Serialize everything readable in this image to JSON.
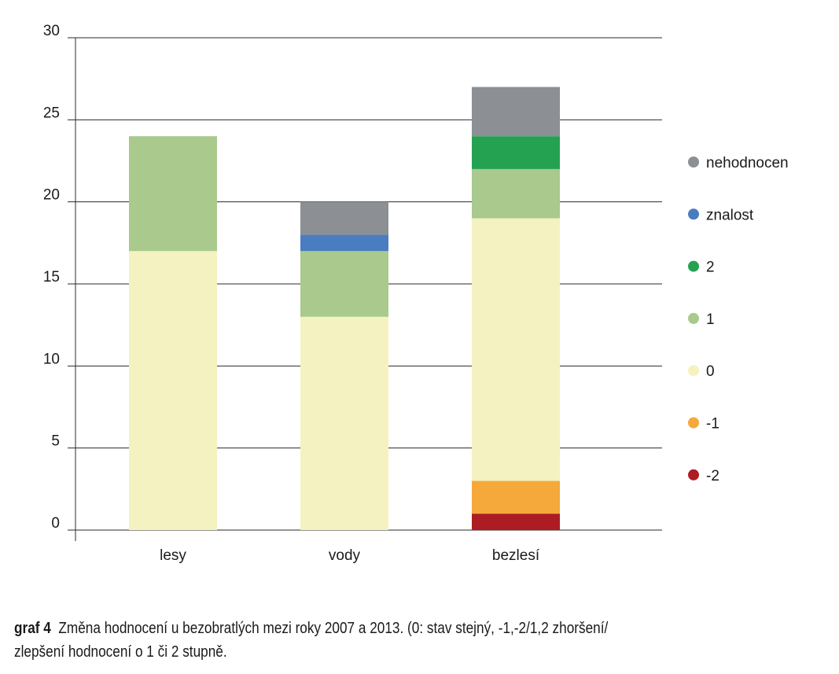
{
  "chart_data": {
    "type": "bar",
    "stacked": true,
    "categories": [
      "lesy",
      "vody",
      "bezlesí"
    ],
    "series": [
      {
        "name": "-2",
        "color": "#ad1c23",
        "values": [
          0,
          0,
          1
        ]
      },
      {
        "name": "-1",
        "color": "#f5a93a",
        "values": [
          0,
          0,
          2
        ]
      },
      {
        "name": "0",
        "color": "#f4f2c1",
        "values": [
          17,
          13,
          16
        ]
      },
      {
        "name": "1",
        "color": "#a9c98d",
        "values": [
          7,
          4,
          3
        ]
      },
      {
        "name": "2",
        "color": "#25a152",
        "values": [
          0,
          0,
          2
        ]
      },
      {
        "name": "znalost",
        "color": "#4a7cc0",
        "values": [
          0,
          1,
          0
        ]
      },
      {
        "name": "nehodnocen",
        "color": "#8c8f93",
        "values": [
          0,
          2,
          3
        ]
      }
    ],
    "ylim": [
      0,
      30
    ],
    "yticks": [
      0,
      5,
      10,
      15,
      20,
      25,
      30
    ],
    "grid": true,
    "legend_position": "right",
    "title": "",
    "xlabel": "",
    "ylabel": ""
  },
  "caption": {
    "label": "graf 4",
    "text": "Změna hodnocení u bezobratlých mezi roky 2007 a 2013. (0: stav stejný, -1,-2/1,2 zhoršení/",
    "text2": "zlepšení hodnocení o 1 či 2 stupně."
  }
}
